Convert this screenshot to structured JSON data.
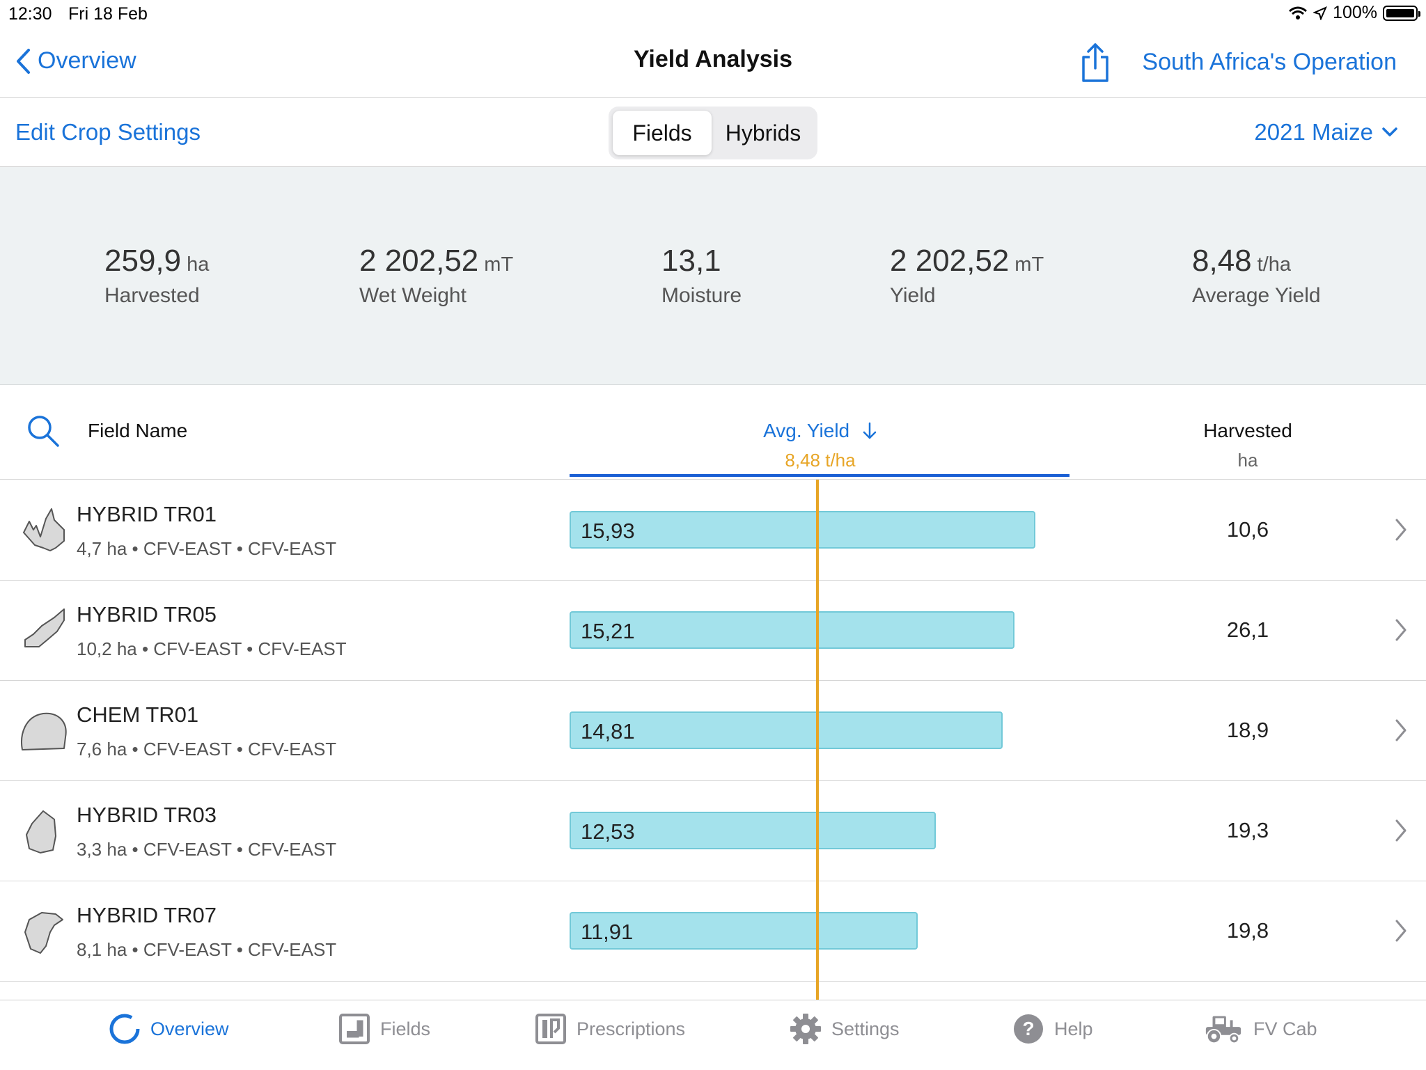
{
  "status_bar": {
    "time": "12:30",
    "date": "Fri 18 Feb",
    "battery": "100%"
  },
  "nav": {
    "back_label": "Overview",
    "title": "Yield Analysis",
    "operation": "South Africa's Operation"
  },
  "toolbar": {
    "edit_crop": "Edit Crop Settings",
    "segments": [
      "Fields",
      "Hybrids"
    ],
    "selected_segment": "Fields",
    "season": "2021 Maize"
  },
  "summary": [
    {
      "value": "259,9",
      "unit": "ha",
      "label": "Harvested"
    },
    {
      "value": "2 202,52",
      "unit": "mT",
      "label": "Wet Weight"
    },
    {
      "value": "13,1",
      "unit": "",
      "label": "Moisture"
    },
    {
      "value": "2 202,52",
      "unit": "mT",
      "label": "Yield"
    },
    {
      "value": "8,48",
      "unit": "t/ha",
      "label": "Average Yield"
    }
  ],
  "table": {
    "col_field": "Field Name",
    "col_avg": "Avg. Yield",
    "col_avg_value": "8,48 t/ha",
    "avg_numeric": 8.48,
    "col_harvested": "Harvested",
    "col_harvested_unit": "ha",
    "rows": [
      {
        "name": "HYBRID TR01",
        "meta": "4,7 ha • CFV-EAST • CFV-EAST",
        "avg_yield": "15,93",
        "avg_numeric": 15.93,
        "harvested": "10,6"
      },
      {
        "name": "HYBRID TR05",
        "meta": "10,2 ha • CFV-EAST • CFV-EAST",
        "avg_yield": "15,21",
        "avg_numeric": 15.21,
        "harvested": "26,1"
      },
      {
        "name": "CHEM TR01",
        "meta": "7,6 ha • CFV-EAST • CFV-EAST",
        "avg_yield": "14,81",
        "avg_numeric": 14.81,
        "harvested": "18,9"
      },
      {
        "name": "HYBRID TR03",
        "meta": "3,3 ha • CFV-EAST • CFV-EAST",
        "avg_yield": "12,53",
        "avg_numeric": 12.53,
        "harvested": "19,3"
      },
      {
        "name": "HYBRID TR07",
        "meta": "8,1 ha • CFV-EAST • CFV-EAST",
        "avg_yield": "11,91",
        "avg_numeric": 11.91,
        "harvested": "19,8"
      }
    ]
  },
  "tabs": [
    {
      "label": "Overview",
      "icon": "overview-ring-icon",
      "active": true
    },
    {
      "label": "Fields",
      "icon": "fields-icon",
      "active": false
    },
    {
      "label": "Prescriptions",
      "icon": "prescriptions-icon",
      "active": false
    },
    {
      "label": "Settings",
      "icon": "gear-icon",
      "active": false
    },
    {
      "label": "Help",
      "icon": "help-icon",
      "active": false
    },
    {
      "label": "FV Cab",
      "icon": "tractor-icon",
      "active": false
    }
  ],
  "colors": {
    "accent": "#1a73d9",
    "average_line": "#e7a526",
    "bar_fill": "#a4e2ec",
    "summary_bg": "#eef2f3"
  }
}
